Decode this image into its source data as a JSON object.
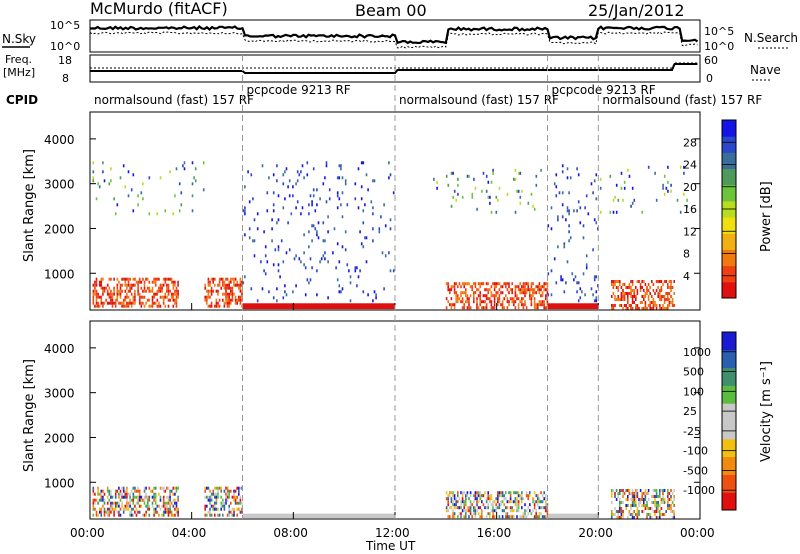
{
  "header": {
    "title_left": "McMurdo (fitACF)",
    "title_center": "Beam 00",
    "title_right": "25/Jan/2012"
  },
  "top_panels": {
    "nsky_label": "N.Sky",
    "nsky_ticks": [
      "10^5",
      "10^0"
    ],
    "nsearch_label": "N.Search",
    "nsearch_ticks": [
      "10^5",
      "10^0"
    ],
    "freq_label": "Freq.",
    "freq_unit": "[MHz]",
    "freq_ticks": [
      "18",
      "8"
    ],
    "nave_label": "Nave",
    "nave_ticks": [
      "60",
      "0"
    ],
    "cpid_label": "CPID"
  },
  "cpid_segments": [
    {
      "text": "normalsound (fast) 157 RF",
      "start_hour": 0.0
    },
    {
      "text": "pcpcode 9213 RF",
      "start_hour": 6.0
    },
    {
      "text": "normalsound (fast) 157 RF",
      "start_hour": 12.0
    },
    {
      "text": "pcpcode 9213 RF",
      "start_hour": 18.0
    },
    {
      "text": "normalsound (fast) 157 RF",
      "start_hour": 20.0
    }
  ],
  "chart_data": [
    {
      "type": "heatmap",
      "ylabel": "Slant Range [km]",
      "ylim": [
        180,
        4600
      ],
      "yticks": [
        "1000",
        "2000",
        "3000",
        "4000"
      ],
      "xlim_hours": [
        0,
        24
      ],
      "colorbar": {
        "label": "Power [dB]",
        "ticks": [
          "28",
          "24",
          "20",
          "16",
          "12",
          "8",
          "4"
        ],
        "range": [
          0,
          30
        ],
        "colors": [
          "#1414e6",
          "#2b46c8",
          "#3a6e9a",
          "#4e9a5a",
          "#6cc43a",
          "#b8dc20",
          "#f0e010",
          "#f2b010",
          "#f07a10",
          "#ee4010",
          "#e01010"
        ]
      },
      "echo_regions": [
        {
          "start_hour": 0.1,
          "end_hour": 3.5,
          "range_min": 200,
          "range_max": 900,
          "level": "high"
        },
        {
          "start_hour": 4.5,
          "end_hour": 6.0,
          "range_min": 200,
          "range_max": 900,
          "level": "high"
        },
        {
          "start_hour": 0.1,
          "end_hour": 4.5,
          "range_min": 2300,
          "range_max": 3500,
          "level": "low"
        },
        {
          "start_hour": 6.0,
          "end_hour": 12.0,
          "range_min": 200,
          "range_max": 330,
          "level": "high"
        },
        {
          "start_hour": 6.0,
          "end_hour": 12.0,
          "range_min": 350,
          "range_max": 3500,
          "level": "noise"
        },
        {
          "start_hour": 14.0,
          "end_hour": 18.0,
          "range_min": 200,
          "range_max": 800,
          "level": "high"
        },
        {
          "start_hour": 13.5,
          "end_hour": 18.0,
          "range_min": 2300,
          "range_max": 3400,
          "level": "low"
        },
        {
          "start_hour": 18.0,
          "end_hour": 20.0,
          "range_min": 200,
          "range_max": 330,
          "level": "high"
        },
        {
          "start_hour": 18.0,
          "end_hour": 20.0,
          "range_min": 350,
          "range_max": 3500,
          "level": "noise"
        },
        {
          "start_hour": 20.5,
          "end_hour": 23.0,
          "range_min": 200,
          "range_max": 850,
          "level": "high"
        },
        {
          "start_hour": 20.0,
          "end_hour": 23.5,
          "range_min": 2300,
          "range_max": 3400,
          "level": "low"
        }
      ]
    },
    {
      "type": "heatmap",
      "ylabel": "Slant Range [km]",
      "ylim": [
        180,
        4600
      ],
      "yticks": [
        "1000",
        "2000",
        "3000",
        "4000"
      ],
      "xlim_hours": [
        0,
        24
      ],
      "xlabel": "Time UT",
      "xticks": [
        "00:00",
        "04:00",
        "08:00",
        "12:00",
        "16:00",
        "20:00",
        "00:00"
      ],
      "colorbar": {
        "label": "Velocity [m s⁻¹]",
        "ticks": [
          "1000",
          "500",
          "100",
          "25",
          "-25",
          "-100",
          "-500",
          "-1000"
        ],
        "colors": [
          "#1a1ad2",
          "#2a5fb0",
          "#3f8f6f",
          "#5cbc40",
          "#c8c8c8",
          "#c8c8c8",
          "#f2c010",
          "#f08a10",
          "#ee5010",
          "#e01010"
        ]
      },
      "echo_regions": [
        {
          "start_hour": 0.1,
          "end_hour": 3.5,
          "range_min": 200,
          "range_max": 900,
          "level": "mixed"
        },
        {
          "start_hour": 4.5,
          "end_hour": 6.0,
          "range_min": 200,
          "range_max": 900,
          "level": "mixed"
        },
        {
          "start_hour": 6.0,
          "end_hour": 12.0,
          "range_min": 200,
          "range_max": 300,
          "level": "ground"
        },
        {
          "start_hour": 18.0,
          "end_hour": 20.0,
          "range_min": 200,
          "range_max": 300,
          "level": "ground"
        },
        {
          "start_hour": 14.0,
          "end_hour": 18.0,
          "range_min": 200,
          "range_max": 800,
          "level": "mixed"
        },
        {
          "start_hour": 20.5,
          "end_hour": 23.0,
          "range_min": 200,
          "range_max": 850,
          "level": "mixed"
        }
      ]
    }
  ]
}
